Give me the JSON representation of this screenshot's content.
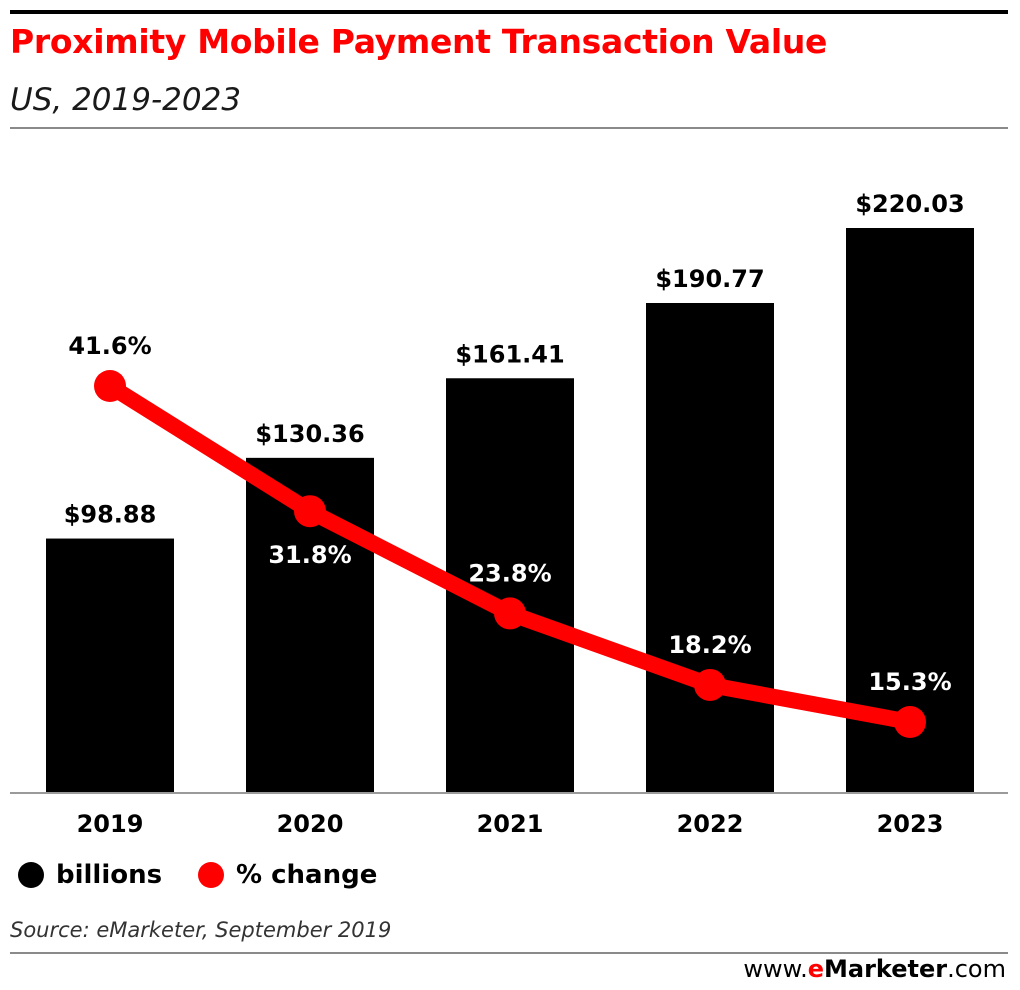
{
  "header": {
    "title": "Proximity Mobile Payment Transaction Value",
    "subtitle": "US, 2019-2023"
  },
  "colors": {
    "title": "#ff0000",
    "bars": "#000000",
    "line": "#ff0000"
  },
  "chart_data": {
    "type": "bar",
    "categories": [
      "2019",
      "2020",
      "2021",
      "2022",
      "2023"
    ],
    "series": [
      {
        "name": "billions",
        "type": "bar",
        "values": [
          98.88,
          130.36,
          161.41,
          190.77,
          220.03
        ],
        "labels": [
          "$98.88",
          "$130.36",
          "$161.41",
          "$190.77",
          "$220.03"
        ]
      },
      {
        "name": "% change",
        "type": "line",
        "values": [
          41.6,
          31.8,
          23.8,
          18.2,
          15.3
        ],
        "labels": [
          "41.6%",
          "31.8%",
          "23.8%",
          "18.2%",
          "15.3%"
        ]
      }
    ],
    "ylim": [
      0,
      220.03
    ],
    "grid": false,
    "legend": "bottom-left"
  },
  "legend": {
    "bars_label": "billions",
    "line_label": "% change"
  },
  "footer": {
    "source": "Source: eMarketer, September 2019",
    "brand_prefix": "www.",
    "brand_e": "e",
    "brand_name": "Marketer",
    "brand_suffix": ".com"
  }
}
